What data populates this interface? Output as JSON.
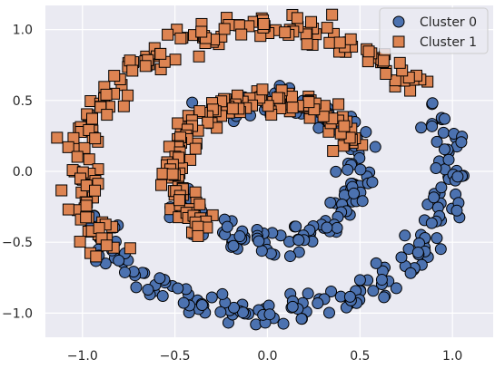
{
  "chart_data": {
    "type": "scatter",
    "title": "",
    "xlabel": "",
    "ylabel": "",
    "xlim": [
      -1.2,
      1.22
    ],
    "ylim": [
      -1.17,
      1.17
    ],
    "xticks": [
      "−1.0",
      "−0.5",
      "0.0",
      "0.5",
      "1.0"
    ],
    "xtick_values": [
      -1.0,
      -0.5,
      0.0,
      0.5,
      1.0
    ],
    "yticks": [
      "1.0",
      "0.5",
      "0.0",
      "−0.5",
      "−1.0"
    ],
    "ytick_values": [
      1.0,
      0.5,
      0.0,
      -0.5,
      -1.0
    ],
    "grid": true,
    "background": "#eaeaf2",
    "legend_position": "top-right",
    "series": [
      {
        "name": "Cluster 0",
        "marker": "circle",
        "color": "#4c72b0",
        "outline": "#000000",
        "arcs": [
          {
            "center": [
              0.0,
              0.0
            ],
            "radius": 1.0,
            "from_deg": 25,
            "to_deg": -160,
            "count": 175,
            "noise": 0.06
          },
          {
            "center": [
              0.0,
              0.0
            ],
            "radius": 0.5,
            "from_deg": 120,
            "to_deg": -160,
            "count": 160,
            "noise": 0.05
          }
        ]
      },
      {
        "name": "Cluster 1",
        "marker": "square",
        "color": "#dd8452",
        "outline": "#000000",
        "arcs": [
          {
            "center": [
              0.0,
              0.0
            ],
            "radius": 1.0,
            "from_deg": 35,
            "to_deg": 215,
            "count": 175,
            "noise": 0.06
          },
          {
            "center": [
              0.0,
              0.0
            ],
            "radius": 0.5,
            "from_deg": 25,
            "to_deg": 230,
            "count": 160,
            "noise": 0.05
          }
        ]
      }
    ]
  },
  "legend": {
    "items": [
      "Cluster 0",
      "Cluster 1"
    ]
  }
}
